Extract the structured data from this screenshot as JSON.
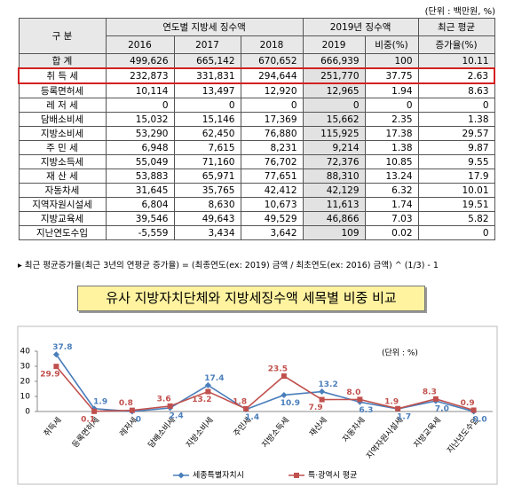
{
  "table": {
    "unit": "(단위 : 백만원, %)",
    "header": {
      "label": "구  분",
      "group1": "연도별 지방세 징수액",
      "group2": "2019년 징수액",
      "group3": "최근 평균",
      "years": [
        "2016",
        "2017",
        "2018"
      ],
      "year2019": "2019",
      "share": "비중(%)",
      "growth": "증가율(%)"
    },
    "rows": [
      [
        "합   계",
        "499,626",
        "665,142",
        "670,652",
        "666,939",
        "100",
        "10.11"
      ],
      [
        "취 득 세",
        "232,873",
        "331,831",
        "294,644",
        "251,770",
        "37.75",
        "2.63"
      ],
      [
        "등록면허세",
        "10,114",
        "13,497",
        "12,920",
        "12,965",
        "1.94",
        "8.63"
      ],
      [
        "레 저 세",
        "0",
        "0",
        "0",
        "0",
        "0",
        "0"
      ],
      [
        "담배소비세",
        "15,032",
        "15,146",
        "17,369",
        "15,662",
        "2.35",
        "1.38"
      ],
      [
        "지방소비세",
        "53,290",
        "62,450",
        "76,880",
        "115,925",
        "17.38",
        "29.57"
      ],
      [
        "주 민 세",
        "6,948",
        "7,615",
        "8,231",
        "9,214",
        "1.38",
        "9.87"
      ],
      [
        "지방소득세",
        "55,049",
        "71,160",
        "76,702",
        "72,376",
        "10.85",
        "9.55"
      ],
      [
        "재 산 세",
        "53,883",
        "65,971",
        "77,651",
        "88,310",
        "13.24",
        "17.9"
      ],
      [
        "자동차세",
        "31,645",
        "35,765",
        "42,412",
        "42,129",
        "6.32",
        "10.01"
      ],
      [
        "지역자원시설세",
        "6,804",
        "8,630",
        "10,673",
        "11,613",
        "1.74",
        "19.51"
      ],
      [
        "지방교육세",
        "39,546",
        "49,643",
        "49,529",
        "46,866",
        "7.03",
        "5.82"
      ],
      [
        "지난연도수입",
        "-5,559",
        "3,434",
        "3,642",
        "109",
        "0.02",
        "0"
      ]
    ]
  },
  "footnote": "▸ 최근 평균증가율(최근 3년의 연평균 증가율) = (최종연도(ex: 2019) 금액 / 최초연도(ex: 2016) 금액) ^ (1/3) - 1",
  "banner": "유사 지방자치단체와 지방세징수액 세목별 비중 비교",
  "chart_data": {
    "type": "line",
    "unit_label": "(단위 : %)",
    "categories": [
      "취득세",
      "등록면허세",
      "레저세",
      "담배소비세",
      "지방소비세",
      "주민세",
      "지방소득세",
      "재산세",
      "자동차세",
      "지역자원시설세",
      "지방교육세",
      "지난년도수입"
    ],
    "series": [
      {
        "name": "세종특별자치시",
        "color": "#4a7ebb",
        "marker": "diamond",
        "values": [
          37.8,
          1.9,
          0,
          2.4,
          17.4,
          1.4,
          10.9,
          13.2,
          6.3,
          1.7,
          7.0,
          0.0
        ],
        "value_labels": [
          "37.8",
          "1.9",
          "0",
          "2.4",
          "17.4",
          "1.4",
          "10.9",
          "13.2",
          "6.3",
          "1.7",
          "7.0",
          "0.0"
        ]
      },
      {
        "name": "특·광역시 평균",
        "color": "#c0504d",
        "marker": "square",
        "values": [
          29.9,
          0.1,
          0.8,
          3.6,
          13.2,
          1.8,
          23.5,
          7.9,
          8.0,
          1.9,
          8.3,
          0.9
        ],
        "value_labels": [
          "29.9",
          "0.1",
          "0.8",
          "3.6",
          "13.2",
          "1.8",
          "23.5",
          "7.9",
          "8.0",
          "1.9",
          "8.3",
          "0.9"
        ]
      }
    ],
    "ylim": [
      0,
      40
    ],
    "yticks": [
      0,
      10,
      20,
      30,
      40
    ],
    "grid": false
  }
}
